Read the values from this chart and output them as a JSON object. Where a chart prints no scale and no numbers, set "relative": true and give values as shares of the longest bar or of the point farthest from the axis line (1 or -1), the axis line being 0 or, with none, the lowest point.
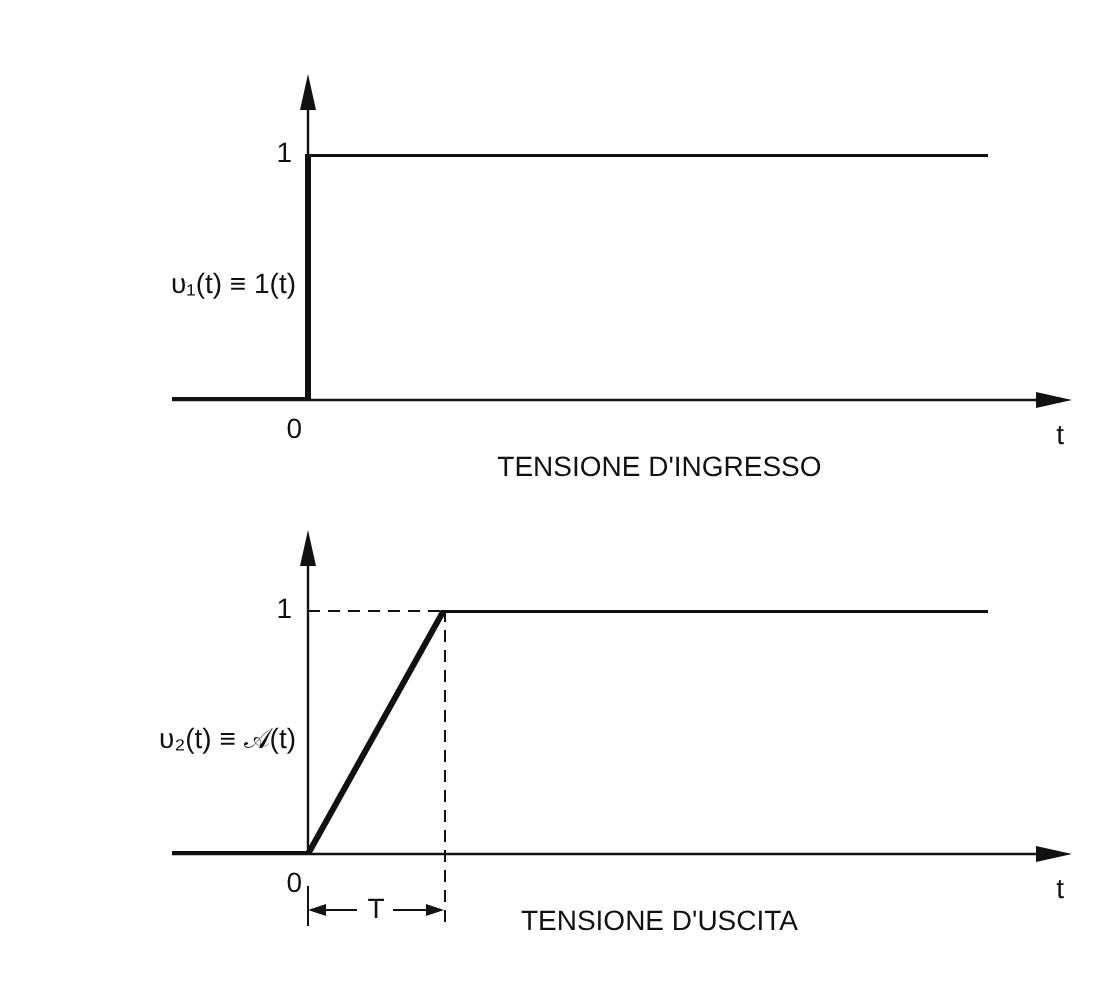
{
  "chart_data": [
    {
      "type": "step",
      "relative": true,
      "ylabel": "υ₁(t) ≡ 1(t)",
      "xlabel": "t",
      "annotations": [
        "1",
        "0",
        "TENSIONE D'INGRESSO"
      ],
      "categories": [
        null,
        null,
        null,
        null,
        null,
        null,
        null
      ],
      "values": [
        0,
        0,
        1,
        1,
        1,
        1,
        1
      ],
      "color": "#111111",
      "grid": false,
      "legend": false,
      "marker": "none",
      "line_style": "solid"
    },
    {
      "type": "line",
      "relative": true,
      "ylabel": "υ₂(t) ≡ 𝒜(t)",
      "xlabel": "t",
      "annotations": [
        "1",
        "0",
        "T",
        "TENSIONE D'USCITA"
      ],
      "categories": [
        null,
        null,
        null,
        null,
        null,
        null,
        null
      ],
      "values": [
        0,
        0,
        1,
        1,
        1,
        1,
        1
      ],
      "color": "#111111",
      "grid": false,
      "legend": false,
      "marker": "none",
      "line_style": "solid"
    }
  ]
}
